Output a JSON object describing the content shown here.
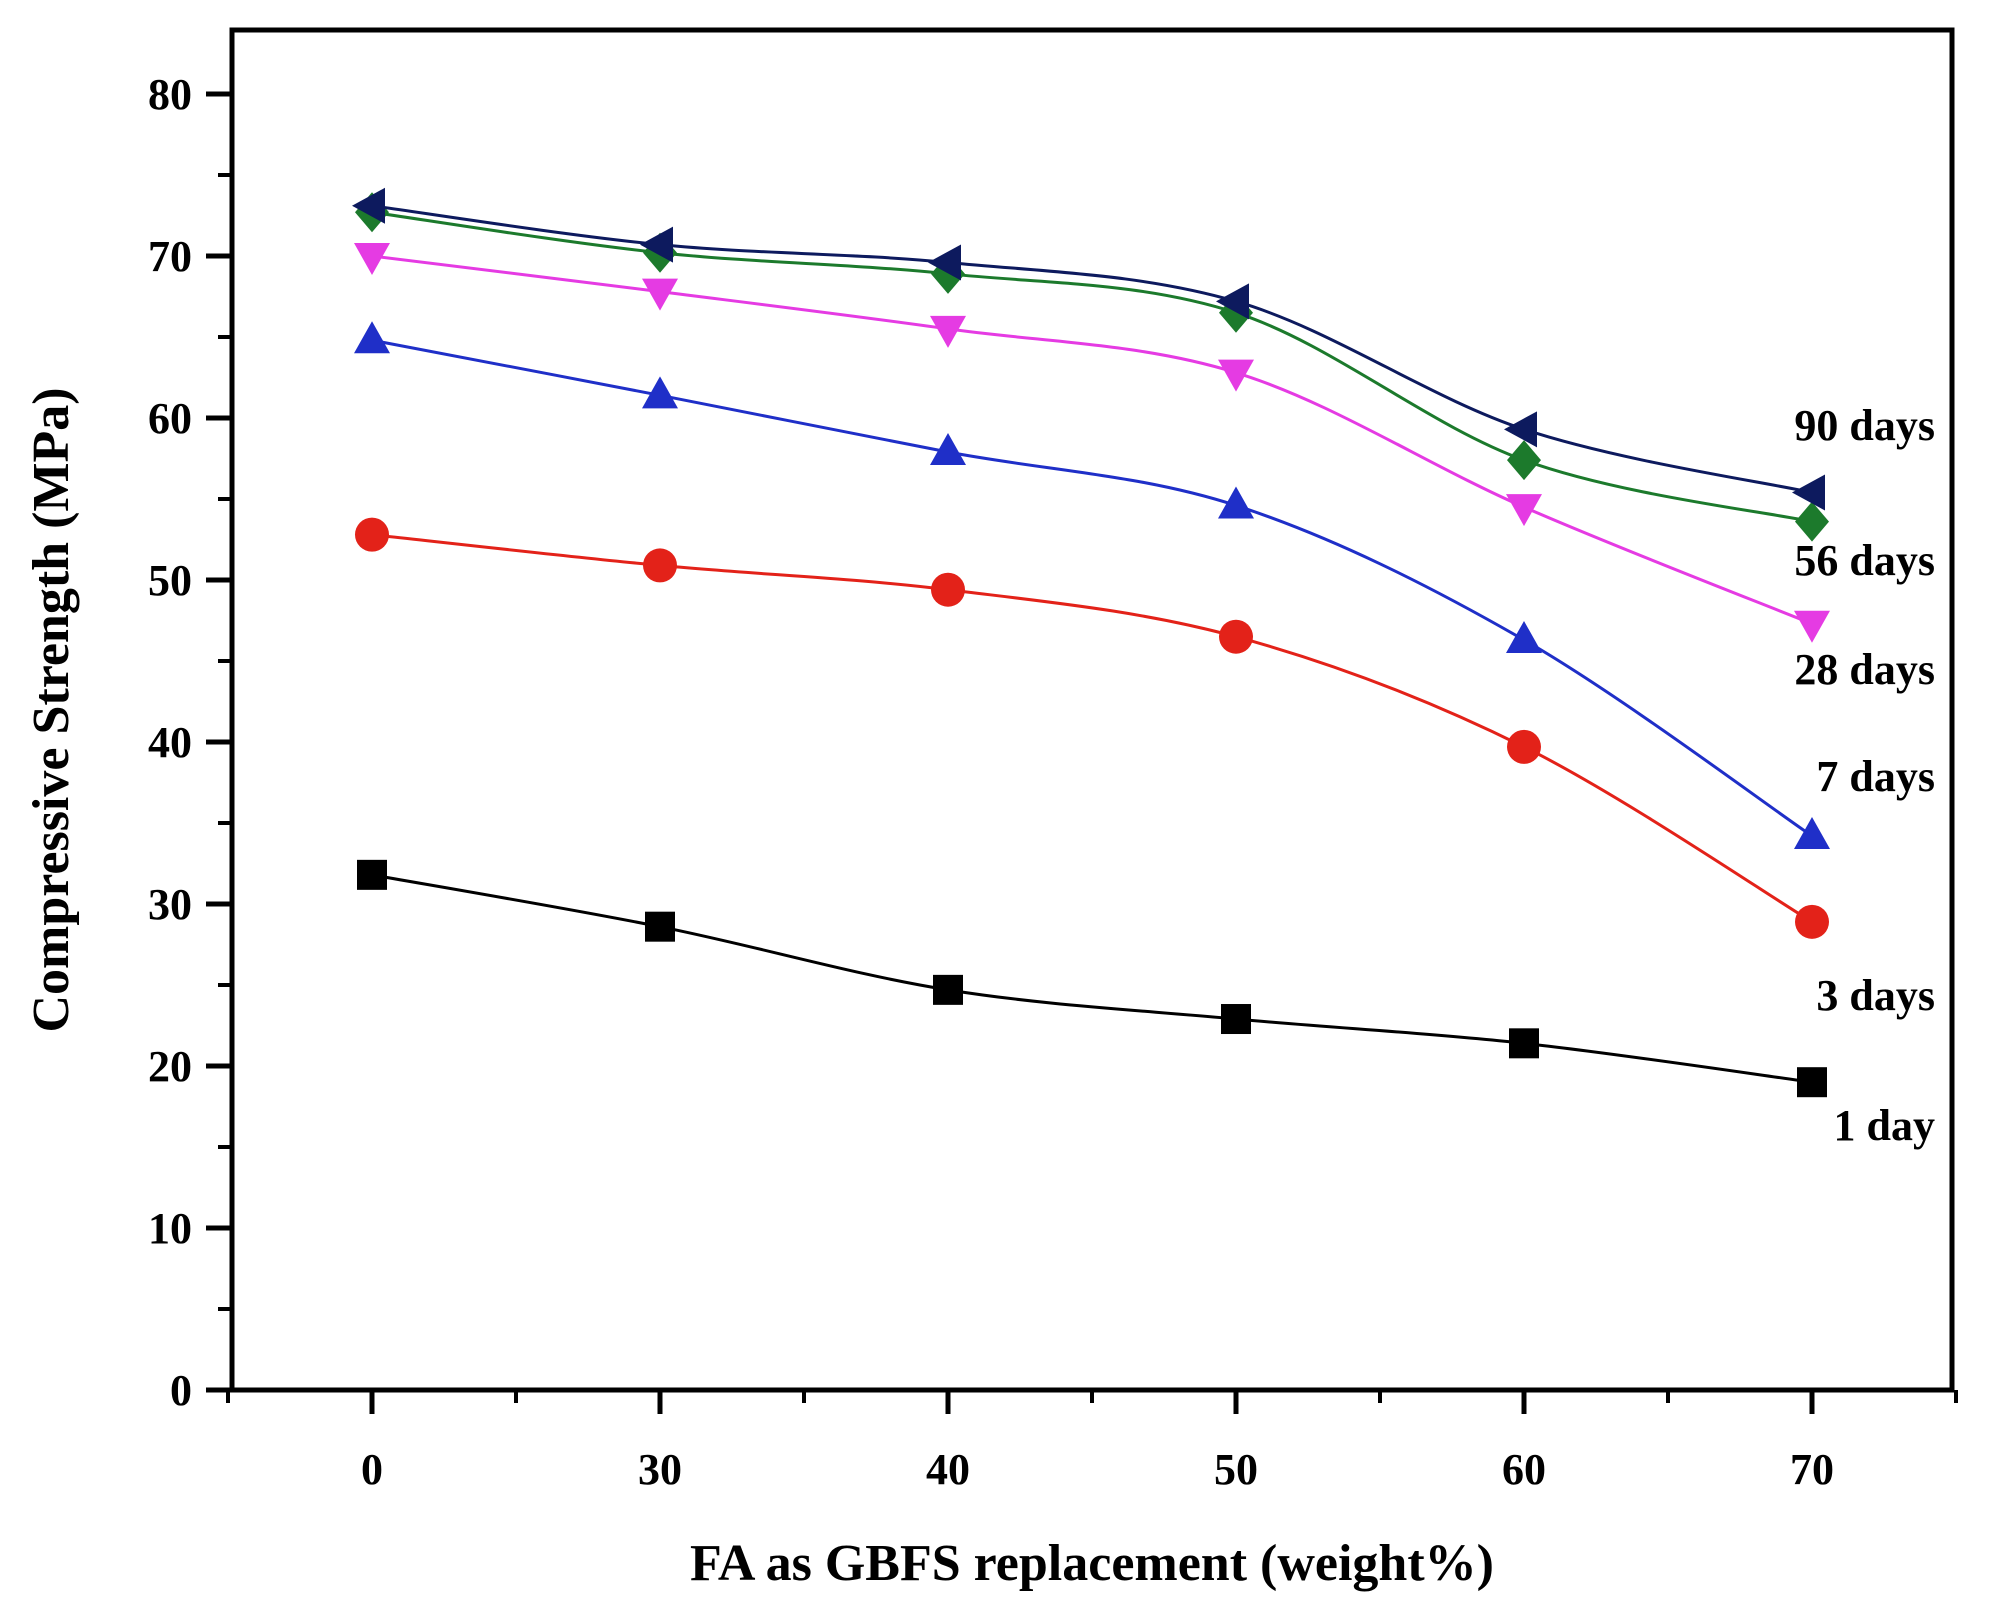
{
  "chart_data": {
    "type": "line",
    "title": "",
    "xlabel": "FA as GBFS replacement (weight%)",
    "ylabel": "Compressive Strength (MPa)",
    "categories": [
      "0",
      "30",
      "40",
      "50",
      "60",
      "70"
    ],
    "ylim": [
      0,
      80
    ],
    "yticks": [
      0,
      10,
      20,
      30,
      40,
      50,
      60,
      70,
      80
    ],
    "grid": false,
    "series": [
      {
        "name": "1 day",
        "marker": "square",
        "color": "#000000",
        "values": [
          31.8,
          28.6,
          24.7,
          22.9,
          21.4,
          19.0
        ]
      },
      {
        "name": "3 days",
        "marker": "circle",
        "color": "#e32219",
        "values": [
          52.8,
          50.9,
          49.4,
          46.5,
          39.7,
          28.9
        ]
      },
      {
        "name": "7 days",
        "marker": "triangle-up",
        "color": "#1f2fc8",
        "values": [
          64.8,
          61.4,
          57.9,
          54.6,
          46.3,
          34.2
        ]
      },
      {
        "name": "28 days",
        "marker": "triangle-down",
        "color": "#e53be3",
        "values": [
          70.0,
          67.8,
          65.5,
          62.8,
          54.5,
          47.3
        ]
      },
      {
        "name": "56 days",
        "marker": "diamond",
        "color": "#1c7a2c",
        "values": [
          72.7,
          70.2,
          68.9,
          66.5,
          57.4,
          53.6
        ]
      },
      {
        "name": "90 days",
        "marker": "triangle-left",
        "color": "#0d1a5e",
        "values": [
          73.1,
          70.7,
          69.6,
          67.2,
          59.3,
          55.4
        ]
      }
    ]
  }
}
